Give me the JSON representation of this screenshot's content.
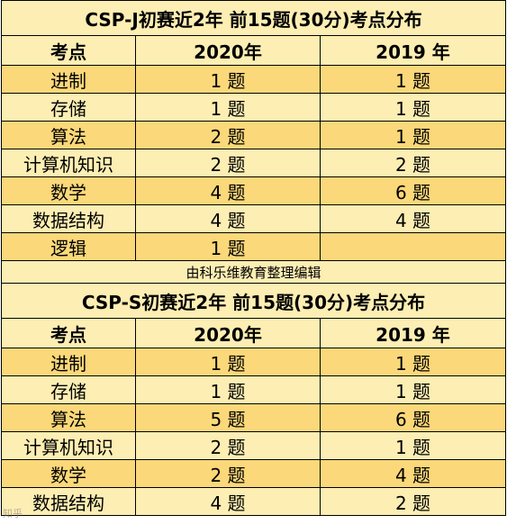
{
  "junior": {
    "title": "CSP-J初赛近2年 前15题(30分)考点分布",
    "headers": [
      "考点",
      "2020年",
      "2019 年"
    ],
    "rows": [
      [
        "进制",
        "1 题",
        "1 题"
      ],
      [
        "存储",
        "1 题",
        "1 题"
      ],
      [
        "算法",
        "2 题",
        "1 题"
      ],
      [
        "计算机知识",
        "2 题",
        "2 题"
      ],
      [
        "数学",
        "4 题",
        "6 题"
      ],
      [
        "数据结构",
        "4 题",
        "4 题"
      ],
      [
        "逻辑",
        "1 题",
        ""
      ]
    ]
  },
  "credit": "由科乐维教育整理编辑",
  "senior": {
    "title": "CSP-S初赛近2年 前15题(30分)考点分布",
    "headers": [
      "考点",
      "2020年",
      "2019 年"
    ],
    "rows": [
      [
        "进制",
        "1 题",
        "1 题"
      ],
      [
        "存储",
        "1 题",
        "1 题"
      ],
      [
        "算法",
        "5 题",
        "6 题"
      ],
      [
        "计算机知识",
        "2 题",
        "1 题"
      ],
      [
        "数学",
        "2 题",
        "4 题"
      ],
      [
        "数据结构",
        "4 题",
        "2 题"
      ]
    ]
  },
  "watermark": "知乎",
  "colors": {
    "light_row": "#fdeeb3",
    "dark_row": "#fbd879",
    "border": "#000000"
  }
}
